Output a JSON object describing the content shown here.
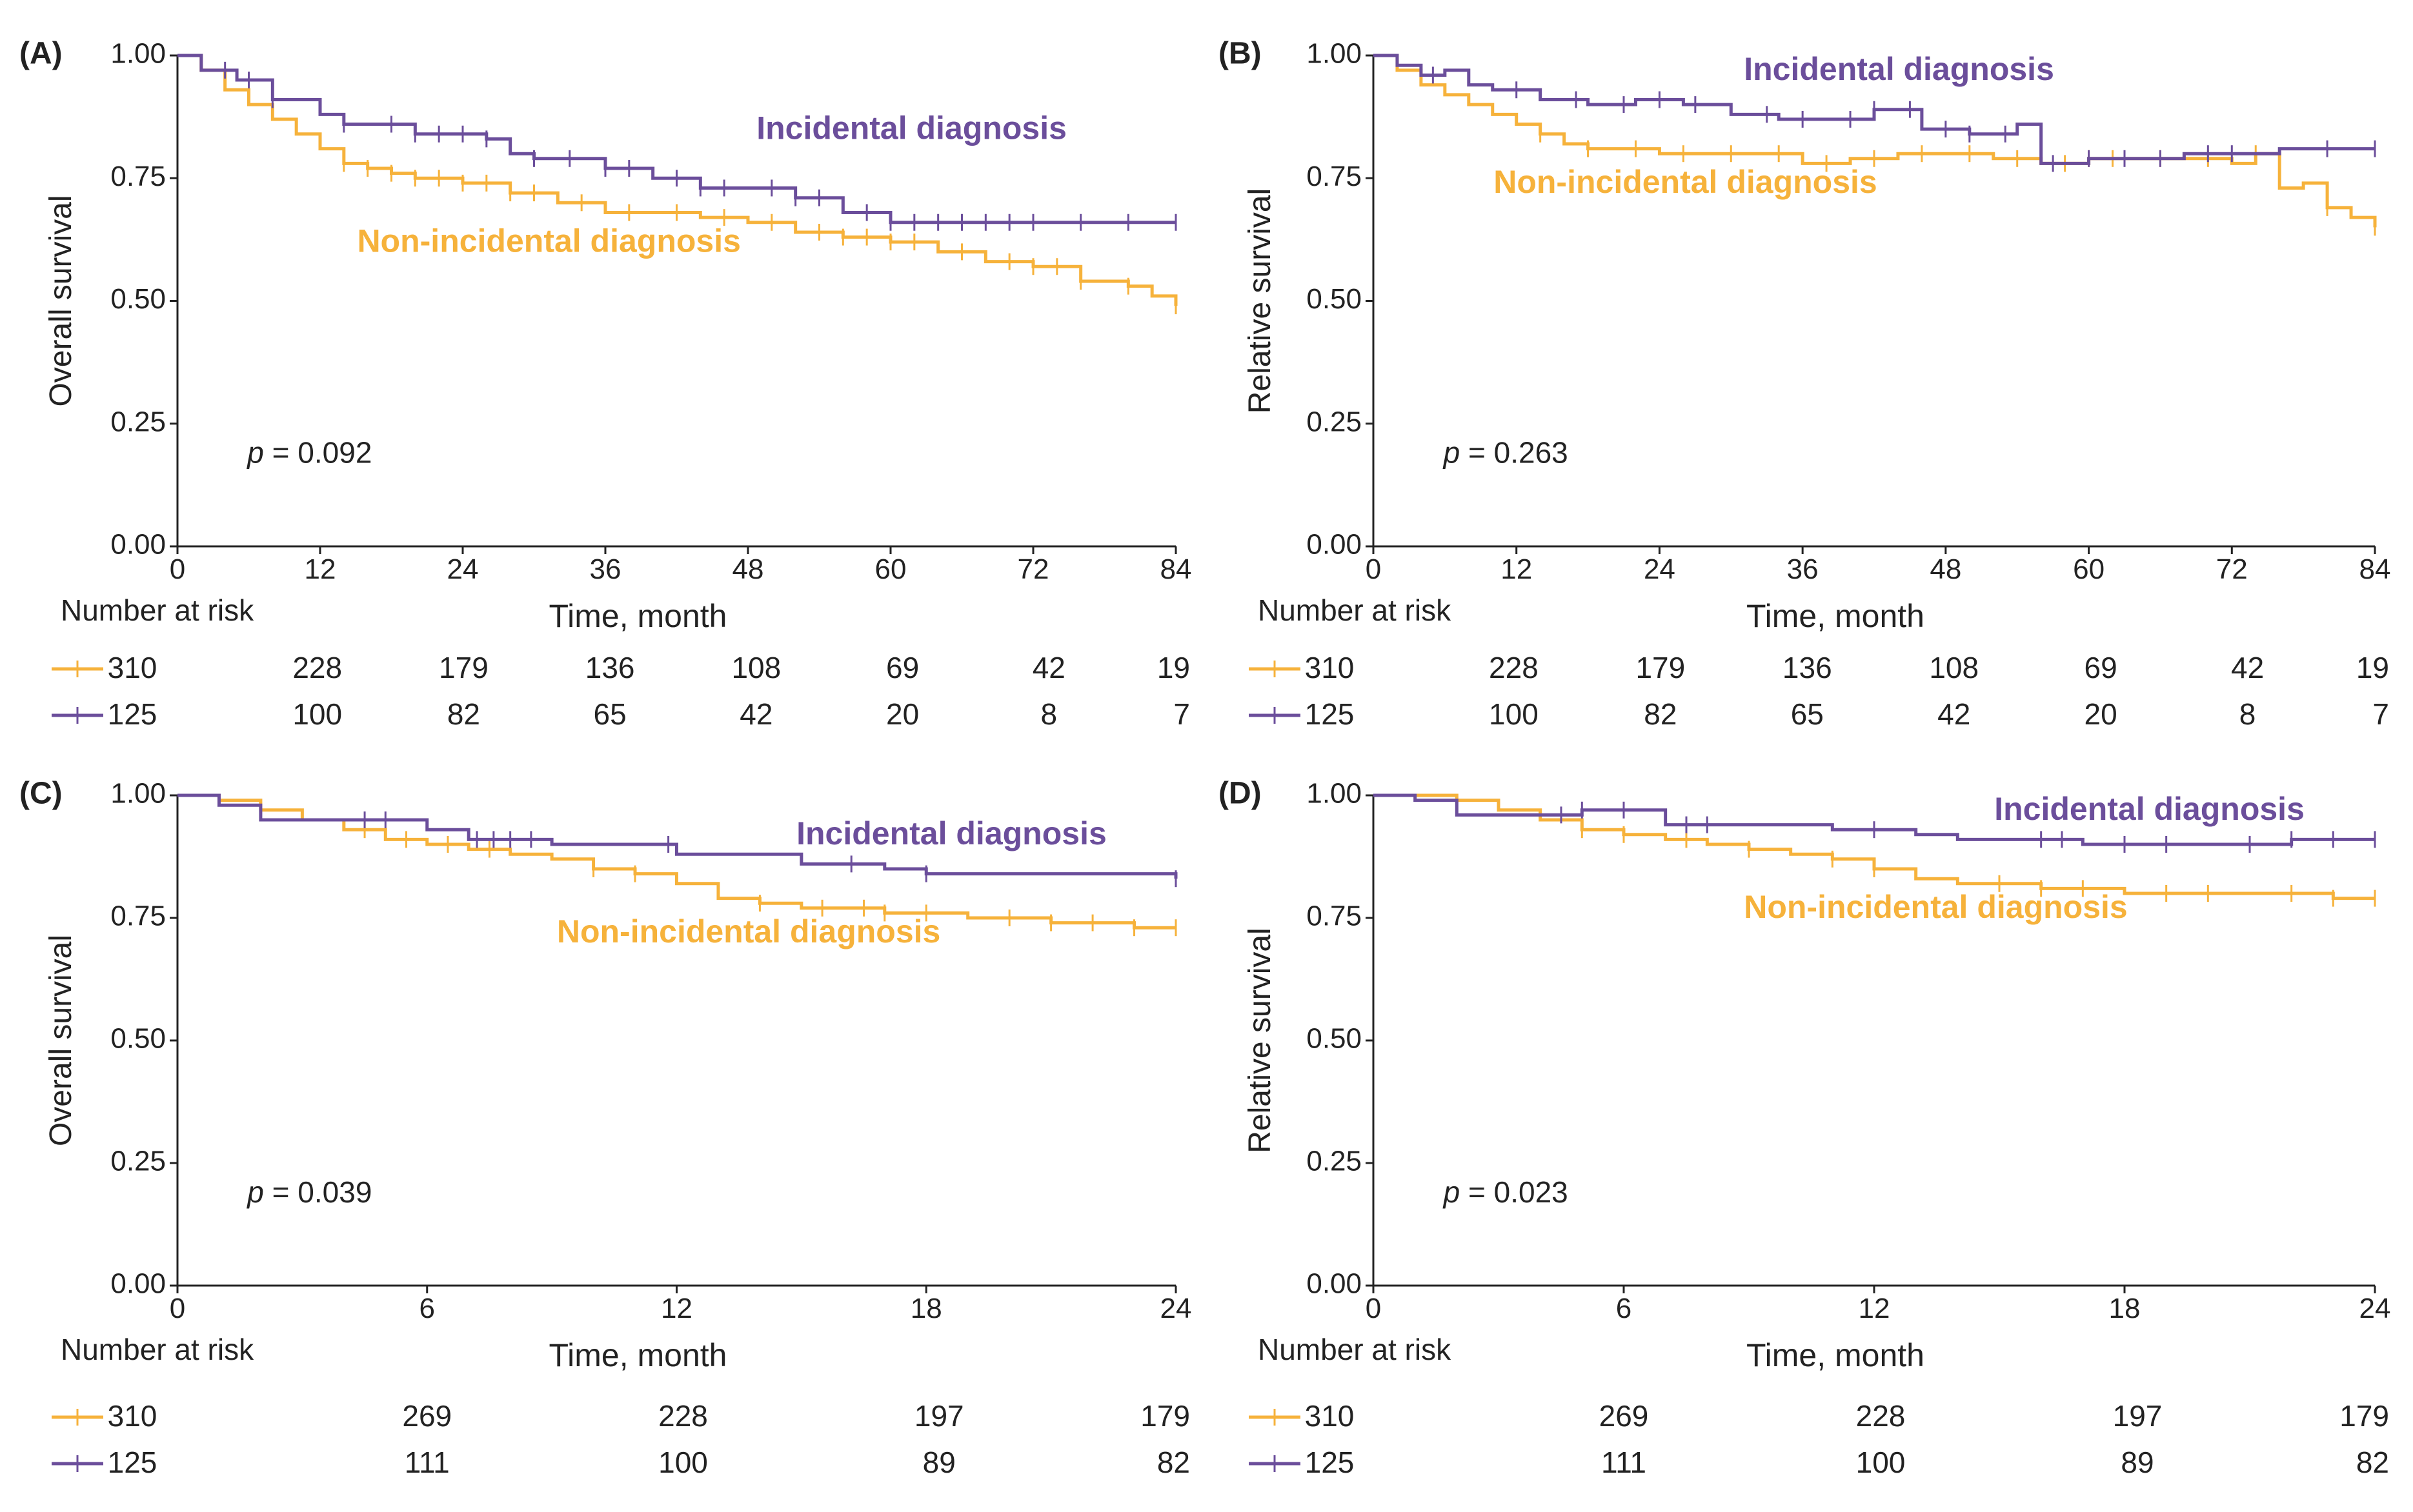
{
  "figure": {
    "colors": {
      "incidental": "#6B4E9B",
      "non_incidental": "#F6B23B",
      "axis": "#222222",
      "text": "#222222"
    },
    "risk_table_label": "Number at risk",
    "panels": [
      {
        "label": "(A)",
        "ylabel": "Overall survival",
        "xlabel": "Time, month",
        "pvalue": "p = 0.092",
        "xticks": [
          "0",
          "12",
          "24",
          "36",
          "48",
          "60",
          "72",
          "84"
        ],
        "yticks": [
          "0.00",
          "0.25",
          "0.50",
          "0.75",
          "1.00"
        ],
        "risk_non_incidental": [
          "310",
          "228",
          "179",
          "136",
          "108",
          "69",
          "42",
          "19"
        ],
        "risk_incidental": [
          "125",
          "100",
          "82",
          "65",
          "42",
          "20",
          "8",
          "7"
        ],
        "incidental_label": "Incidental diagnosis",
        "non_incidental_label": "Non-incidental diagnosis"
      },
      {
        "label": "(B)",
        "ylabel": "Relative survival",
        "xlabel": "Time, month",
        "pvalue": "p = 0.263",
        "xticks": [
          "0",
          "12",
          "24",
          "36",
          "48",
          "60",
          "72",
          "84"
        ],
        "yticks": [
          "0.00",
          "0.25",
          "0.50",
          "0.75",
          "1.00"
        ],
        "risk_non_incidental": [
          "310",
          "228",
          "179",
          "136",
          "108",
          "69",
          "42",
          "19"
        ],
        "risk_incidental": [
          "125",
          "100",
          "82",
          "65",
          "42",
          "20",
          "8",
          "7"
        ],
        "incidental_label": "Incidental diagnosis",
        "non_incidental_label": "Non-incidental diagnosis"
      },
      {
        "label": "(C)",
        "ylabel": "Overall survival",
        "xlabel": "Time, month",
        "pvalue": "p = 0.039",
        "xticks": [
          "0",
          "6",
          "12",
          "18",
          "24"
        ],
        "yticks": [
          "0.00",
          "0.25",
          "0.50",
          "0.75",
          "1.00"
        ],
        "risk_non_incidental": [
          "310",
          "269",
          "228",
          "197",
          "179"
        ],
        "risk_incidental": [
          "125",
          "111",
          "100",
          "89",
          "82"
        ],
        "incidental_label": "Incidental diagnosis",
        "non_incidental_label": "Non-incidental diagnosis"
      },
      {
        "label": "(D)",
        "ylabel": "Relative survival",
        "xlabel": "Time, month",
        "pvalue": "p = 0.023",
        "xticks": [
          "0",
          "6",
          "12",
          "18",
          "24"
        ],
        "yticks": [
          "0.00",
          "0.25",
          "0.50",
          "0.75",
          "1.00"
        ],
        "risk_non_incidental": [
          "310",
          "269",
          "228",
          "197",
          "179"
        ],
        "risk_incidental": [
          "125",
          "111",
          "100",
          "89",
          "82"
        ],
        "incidental_label": "Incidental diagnosis",
        "non_incidental_label": "Non-incidental diagnosis"
      }
    ]
  },
  "chart_data": [
    {
      "type": "line",
      "panel": "(A)",
      "title": "(A)",
      "xlabel": "Time, month",
      "ylabel": "Overall survival",
      "xlim": [
        0,
        84
      ],
      "ylim": [
        0,
        1
      ],
      "annotation": "p = 0.092",
      "series": [
        {
          "name": "Incidental diagnosis",
          "x": [
            0,
            2,
            5,
            8,
            12,
            14,
            20,
            26,
            28,
            30,
            36,
            40,
            44,
            48,
            52,
            56,
            60,
            72,
            84
          ],
          "y": [
            1.0,
            0.97,
            0.95,
            0.91,
            0.88,
            0.86,
            0.84,
            0.83,
            0.8,
            0.79,
            0.77,
            0.75,
            0.73,
            0.73,
            0.71,
            0.68,
            0.66,
            0.66,
            0.66
          ],
          "censor_x": [
            4,
            6,
            8,
            14,
            18,
            20,
            22,
            24,
            26,
            30,
            33,
            36,
            38,
            42,
            44,
            46,
            50,
            52,
            54,
            58,
            60,
            62,
            64,
            66,
            68,
            70,
            72,
            76,
            80,
            84
          ]
        },
        {
          "name": "Non-incidental diagnosis",
          "x": [
            0,
            2,
            4,
            6,
            8,
            10,
            12,
            14,
            16,
            18,
            20,
            24,
            28,
            32,
            36,
            40,
            44,
            48,
            52,
            56,
            60,
            64,
            68,
            72,
            76,
            80,
            82,
            84
          ],
          "y": [
            1.0,
            0.97,
            0.93,
            0.9,
            0.87,
            0.84,
            0.81,
            0.78,
            0.77,
            0.76,
            0.75,
            0.74,
            0.72,
            0.7,
            0.68,
            0.68,
            0.67,
            0.66,
            0.64,
            0.63,
            0.62,
            0.6,
            0.58,
            0.57,
            0.54,
            0.53,
            0.51,
            0.49
          ],
          "censor_x": [
            14,
            16,
            18,
            20,
            22,
            24,
            26,
            28,
            30,
            34,
            38,
            42,
            46,
            50,
            54,
            56,
            58,
            60,
            62,
            66,
            70,
            72,
            74,
            76,
            80,
            84
          ]
        }
      ],
      "risk_table": {
        "times": [
          0,
          12,
          24,
          36,
          48,
          60,
          72,
          84
        ],
        "Non-incidental diagnosis": [
          310,
          228,
          179,
          136,
          108,
          69,
          42,
          19
        ],
        "Incidental diagnosis": [
          125,
          100,
          82,
          65,
          42,
          20,
          8,
          7
        ]
      }
    },
    {
      "type": "line",
      "panel": "(B)",
      "title": "(B)",
      "xlabel": "Time, month",
      "ylabel": "Relative survival",
      "xlim": [
        0,
        84
      ],
      "ylim": [
        0,
        1
      ],
      "annotation": "p = 0.263",
      "series": [
        {
          "name": "Incidental diagnosis",
          "x": [
            0,
            2,
            4,
            6,
            8,
            10,
            14,
            18,
            22,
            26,
            30,
            34,
            38,
            42,
            46,
            50,
            54,
            56,
            60,
            64,
            68,
            72,
            76,
            84
          ],
          "y": [
            1.0,
            0.98,
            0.96,
            0.97,
            0.94,
            0.93,
            0.91,
            0.9,
            0.91,
            0.9,
            0.88,
            0.87,
            0.87,
            0.89,
            0.85,
            0.84,
            0.86,
            0.78,
            0.79,
            0.79,
            0.8,
            0.8,
            0.81,
            0.81
          ],
          "censor_x": [
            5,
            12,
            17,
            21,
            24,
            27,
            33,
            36,
            40,
            42,
            45,
            48,
            50,
            53,
            57,
            60,
            63,
            66,
            70,
            72,
            80,
            84
          ]
        },
        {
          "name": "Non-incidental diagnosis",
          "x": [
            0,
            2,
            4,
            6,
            8,
            10,
            12,
            14,
            16,
            18,
            20,
            24,
            28,
            32,
            36,
            40,
            44,
            48,
            52,
            56,
            60,
            64,
            68,
            72,
            74,
            76,
            78,
            80,
            82,
            84
          ],
          "y": [
            1.0,
            0.97,
            0.94,
            0.92,
            0.9,
            0.88,
            0.86,
            0.84,
            0.82,
            0.81,
            0.81,
            0.8,
            0.8,
            0.8,
            0.78,
            0.79,
            0.8,
            0.8,
            0.79,
            0.78,
            0.79,
            0.79,
            0.79,
            0.78,
            0.8,
            0.73,
            0.74,
            0.69,
            0.67,
            0.65
          ],
          "censor_x": [
            14,
            18,
            22,
            26,
            30,
            34,
            38,
            42,
            46,
            50,
            54,
            58,
            60,
            62,
            66,
            70,
            74,
            80,
            84
          ]
        }
      ],
      "risk_table": {
        "times": [
          0,
          12,
          24,
          36,
          48,
          60,
          72,
          84
        ],
        "Non-incidental diagnosis": [
          310,
          228,
          179,
          136,
          108,
          69,
          42,
          19
        ],
        "Incidental diagnosis": [
          125,
          100,
          82,
          65,
          42,
          20,
          8,
          7
        ]
      }
    },
    {
      "type": "line",
      "panel": "(C)",
      "title": "(C)",
      "xlabel": "Time, month",
      "ylabel": "Overall survival",
      "xlim": [
        0,
        24
      ],
      "ylim": [
        0,
        1
      ],
      "annotation": "p = 0.039",
      "series": [
        {
          "name": "Incidental diagnosis",
          "x": [
            0,
            1,
            2,
            4,
            6,
            7,
            9,
            11,
            12,
            13,
            15,
            17,
            18,
            20,
            22,
            23,
            24
          ],
          "y": [
            1.0,
            0.98,
            0.95,
            0.95,
            0.93,
            0.91,
            0.9,
            0.9,
            0.88,
            0.88,
            0.86,
            0.85,
            0.84,
            0.84,
            0.84,
            0.84,
            0.83
          ],
          "censor_x": [
            4.5,
            5,
            7.2,
            7.6,
            8,
            8.5,
            11.8,
            16.2,
            18,
            24
          ]
        },
        {
          "name": "Non-incidental diagnosis",
          "x": [
            0,
            1,
            2,
            3,
            4,
            5,
            6,
            7,
            8,
            9,
            10,
            11,
            12,
            13,
            14,
            15,
            16,
            17,
            18,
            19,
            20,
            21,
            22,
            23,
            24
          ],
          "y": [
            1.0,
            0.99,
            0.97,
            0.95,
            0.93,
            0.91,
            0.9,
            0.89,
            0.88,
            0.87,
            0.85,
            0.84,
            0.82,
            0.79,
            0.78,
            0.77,
            0.77,
            0.76,
            0.76,
            0.75,
            0.75,
            0.74,
            0.74,
            0.73,
            0.73
          ],
          "censor_x": [
            4.5,
            5.5,
            6.5,
            7.5,
            10,
            11,
            14,
            15.5,
            16.5,
            17,
            18,
            20,
            21,
            22,
            23,
            24
          ]
        }
      ],
      "risk_table": {
        "times": [
          0,
          6,
          12,
          18,
          24
        ],
        "Non-incidental diagnosis": [
          310,
          269,
          228,
          197,
          179
        ],
        "Incidental diagnosis": [
          125,
          111,
          100,
          89,
          82
        ]
      }
    },
    {
      "type": "line",
      "panel": "(D)",
      "title": "(D)",
      "xlabel": "Time, month",
      "ylabel": "Relative survival",
      "xlim": [
        0,
        24
      ],
      "ylim": [
        0,
        1
      ],
      "annotation": "p = 0.023",
      "series": [
        {
          "name": "Incidental diagnosis",
          "x": [
            0,
            1,
            2,
            4,
            5,
            6,
            7,
            9,
            11,
            12,
            13,
            14,
            16,
            17,
            18,
            20,
            22,
            24
          ],
          "y": [
            1.0,
            0.99,
            0.96,
            0.96,
            0.97,
            0.97,
            0.94,
            0.94,
            0.93,
            0.93,
            0.92,
            0.91,
            0.91,
            0.9,
            0.9,
            0.9,
            0.91,
            0.91
          ],
          "censor_x": [
            4.5,
            5,
            6,
            7.5,
            8,
            12,
            16,
            16.5,
            18,
            19,
            21,
            22,
            23,
            24
          ]
        },
        {
          "name": "Non-incidental diagnosis",
          "x": [
            0,
            1,
            2,
            3,
            4,
            5,
            6,
            7,
            8,
            9,
            10,
            11,
            12,
            13,
            14,
            15,
            16,
            17,
            18,
            19,
            20,
            21,
            22,
            23,
            24
          ],
          "y": [
            1.0,
            1.0,
            0.99,
            0.97,
            0.95,
            0.93,
            0.92,
            0.91,
            0.9,
            0.89,
            0.88,
            0.87,
            0.85,
            0.83,
            0.82,
            0.82,
            0.81,
            0.81,
            0.8,
            0.8,
            0.8,
            0.8,
            0.8,
            0.79,
            0.79
          ],
          "censor_x": [
            5,
            6,
            7.5,
            9,
            11,
            12,
            15,
            16,
            17,
            19,
            20,
            22,
            23,
            24
          ]
        }
      ],
      "risk_table": {
        "times": [
          0,
          6,
          12,
          18,
          24
        ],
        "Non-incidental diagnosis": [
          310,
          269,
          228,
          197,
          179
        ],
        "Incidental diagnosis": [
          125,
          111,
          100,
          89,
          82
        ]
      }
    }
  ]
}
